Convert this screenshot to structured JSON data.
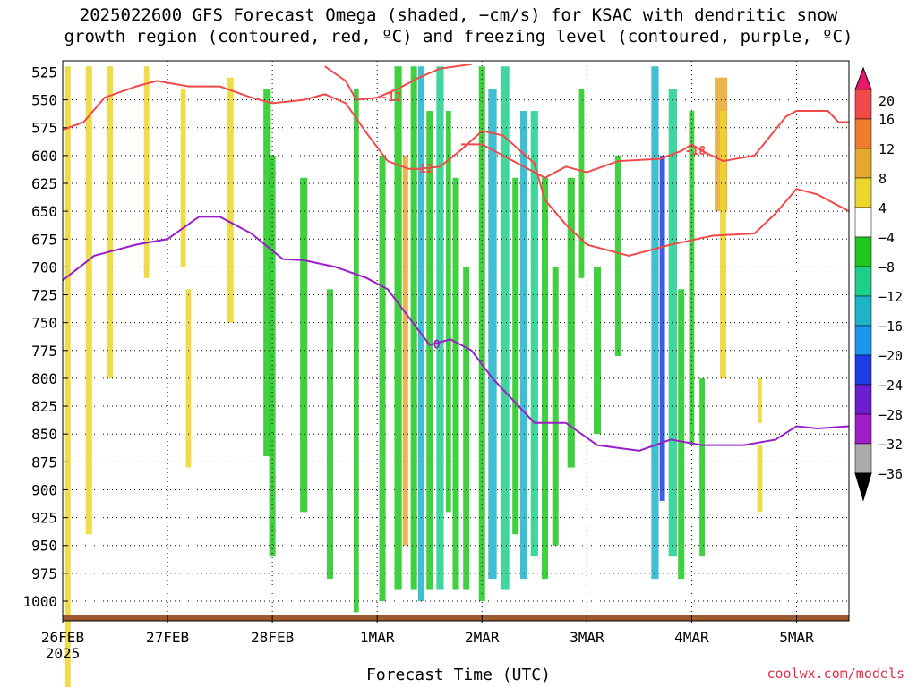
{
  "chart_data": {
    "type": "heatmap",
    "title_line1": "2025022600 GFS Forecast Omega (shaded, −cm/s) for KSAC with dendritic snow",
    "title_line2": "growth region (contoured, red, ºC) and freezing level (contoured, purple, ºC)",
    "xlabel": "Forecast Time (UTC)",
    "ylabel": "",
    "credit": "coolwx.com/models",
    "y_axis": {
      "ticks": [
        525,
        550,
        575,
        600,
        625,
        650,
        675,
        700,
        725,
        750,
        775,
        800,
        825,
        850,
        875,
        900,
        925,
        950,
        975,
        1000
      ],
      "range": [
        515,
        1000
      ],
      "reversed": true
    },
    "x_axis": {
      "ticks": [
        "26FEB",
        "27FEB",
        "28FEB",
        "1MAR",
        "2MAR",
        "3MAR",
        "4MAR",
        "5MAR"
      ],
      "first_tick_year": "2025",
      "range_days": [
        0,
        7.5
      ]
    },
    "colorbar": {
      "labels": [
        "20",
        "16",
        "12",
        "8",
        "4",
        "−4",
        "−8",
        "−12",
        "−16",
        "−20",
        "−24",
        "−28",
        "−32",
        "−36"
      ],
      "colors": [
        "#e8186e",
        "#f04a4a",
        "#f07c2c",
        "#e6a82c",
        "#ecd62c",
        "#ffffff",
        "#1ec81e",
        "#1ecf8c",
        "#1eb4c8",
        "#1e96f0",
        "#1e3ce6",
        "#6e1ed2",
        "#a01ec8",
        "#aaaaaa",
        "#000000"
      ]
    },
    "contours": {
      "dendritic_red": [
        {
          "label": "-12",
          "points": [
            [
              0,
              577
            ],
            [
              0.2,
              570
            ],
            [
              0.4,
              548
            ],
            [
              0.7,
              538
            ],
            [
              0.9,
              533
            ],
            [
              1.2,
              538
            ],
            [
              1.5,
              538
            ],
            [
              1.8,
              548
            ],
            [
              2.0,
              553
            ],
            [
              2.3,
              550
            ],
            [
              2.5,
              545
            ],
            [
              2.7,
              553
            ],
            [
              2.9,
              580
            ],
            [
              3.1,
              605
            ],
            [
              3.3,
              612
            ],
            [
              3.4,
              612
            ],
            [
              3.6,
              610
            ],
            [
              3.8,
              595
            ],
            [
              4.0,
              578
            ],
            [
              4.2,
              582
            ],
            [
              4.5,
              607
            ],
            [
              4.6,
              640
            ],
            [
              4.8,
              662
            ],
            [
              5.0,
              680
            ],
            [
              5.4,
              690
            ],
            [
              5.8,
              680
            ],
            [
              6.2,
              672
            ],
            [
              6.6,
              670
            ],
            [
              6.8,
              652
            ],
            [
              7.0,
              630
            ],
            [
              7.2,
              635
            ],
            [
              7.5,
              650
            ]
          ]
        },
        {
          "label": "-12",
          "points": [
            [
              2.5,
              520
            ],
            [
              2.7,
              533
            ],
            [
              2.8,
              550
            ],
            [
              3.0,
              548
            ],
            [
              3.2,
              540
            ],
            [
              3.4,
              530
            ],
            [
              3.6,
              522
            ],
            [
              3.9,
              518
            ]
          ]
        },
        {
          "label": "-18",
          "points": [
            [
              3.8,
              590
            ],
            [
              4.0,
              590
            ],
            [
              4.3,
              605
            ],
            [
              4.6,
              620
            ],
            [
              4.8,
              610
            ],
            [
              5.0,
              615
            ],
            [
              5.3,
              605
            ],
            [
              5.7,
              603
            ],
            [
              5.9,
              596
            ],
            [
              6.0,
              590
            ],
            [
              6.1,
              596
            ],
            [
              6.3,
              605
            ],
            [
              6.6,
              600
            ],
            [
              6.9,
              565
            ],
            [
              7.0,
              560
            ],
            [
              7.3,
              560
            ],
            [
              7.4,
              570
            ],
            [
              7.5,
              570
            ]
          ]
        }
      ],
      "freezing_purple": {
        "label": "0",
        "points": [
          [
            0,
            712
          ],
          [
            0.3,
            690
          ],
          [
            0.7,
            680
          ],
          [
            1.0,
            675
          ],
          [
            1.3,
            655
          ],
          [
            1.5,
            655
          ],
          [
            1.8,
            670
          ],
          [
            2.1,
            693
          ],
          [
            2.3,
            694
          ],
          [
            2.6,
            700
          ],
          [
            2.9,
            710
          ],
          [
            3.1,
            720
          ],
          [
            3.3,
            745
          ],
          [
            3.5,
            770
          ],
          [
            3.7,
            765
          ],
          [
            3.9,
            775
          ],
          [
            4.1,
            800
          ],
          [
            4.3,
            820
          ],
          [
            4.5,
            840
          ],
          [
            4.8,
            840
          ],
          [
            5.1,
            860
          ],
          [
            5.5,
            865
          ],
          [
            5.8,
            855
          ],
          [
            6.1,
            860
          ],
          [
            6.5,
            860
          ],
          [
            6.8,
            855
          ],
          [
            7.0,
            843
          ],
          [
            7.2,
            845
          ],
          [
            7.5,
            843
          ]
        ]
      }
    }
  }
}
